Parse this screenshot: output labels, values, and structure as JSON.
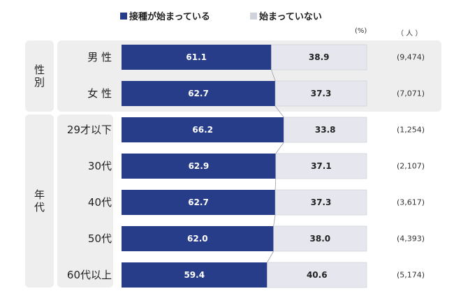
{
  "chart_data": {
    "type": "bar",
    "orientation": "horizontal",
    "stacked": true,
    "unit_percent_label": "(%)",
    "unit_count_label": "（ 人 ）",
    "series": [
      {
        "name": "接種が始まっている",
        "color": "#283d8a",
        "values": [
          61.1,
          62.7,
          66.2,
          62.9,
          62.7,
          62.0,
          59.4
        ]
      },
      {
        "name": "始まっていない",
        "color": "#e6e7ee",
        "values": [
          38.9,
          37.3,
          33.8,
          37.1,
          37.3,
          38.0,
          40.6
        ]
      }
    ],
    "groups": [
      {
        "label": "性別",
        "categories": [
          "男 性",
          "女 性"
        ]
      },
      {
        "label": "年代",
        "categories": [
          "29才以下",
          "30代",
          "40代",
          "50代",
          "60代以上"
        ]
      }
    ],
    "categories": [
      "男 性",
      "女 性",
      "29才以下",
      "30代",
      "40代",
      "50代",
      "60代以上"
    ],
    "counts": [
      "(9,474)",
      "(7,071)",
      "(1,254)",
      "(2,107)",
      "(3,617)",
      "(4,393)",
      "(5,174)"
    ],
    "xlim": [
      0,
      100
    ]
  }
}
